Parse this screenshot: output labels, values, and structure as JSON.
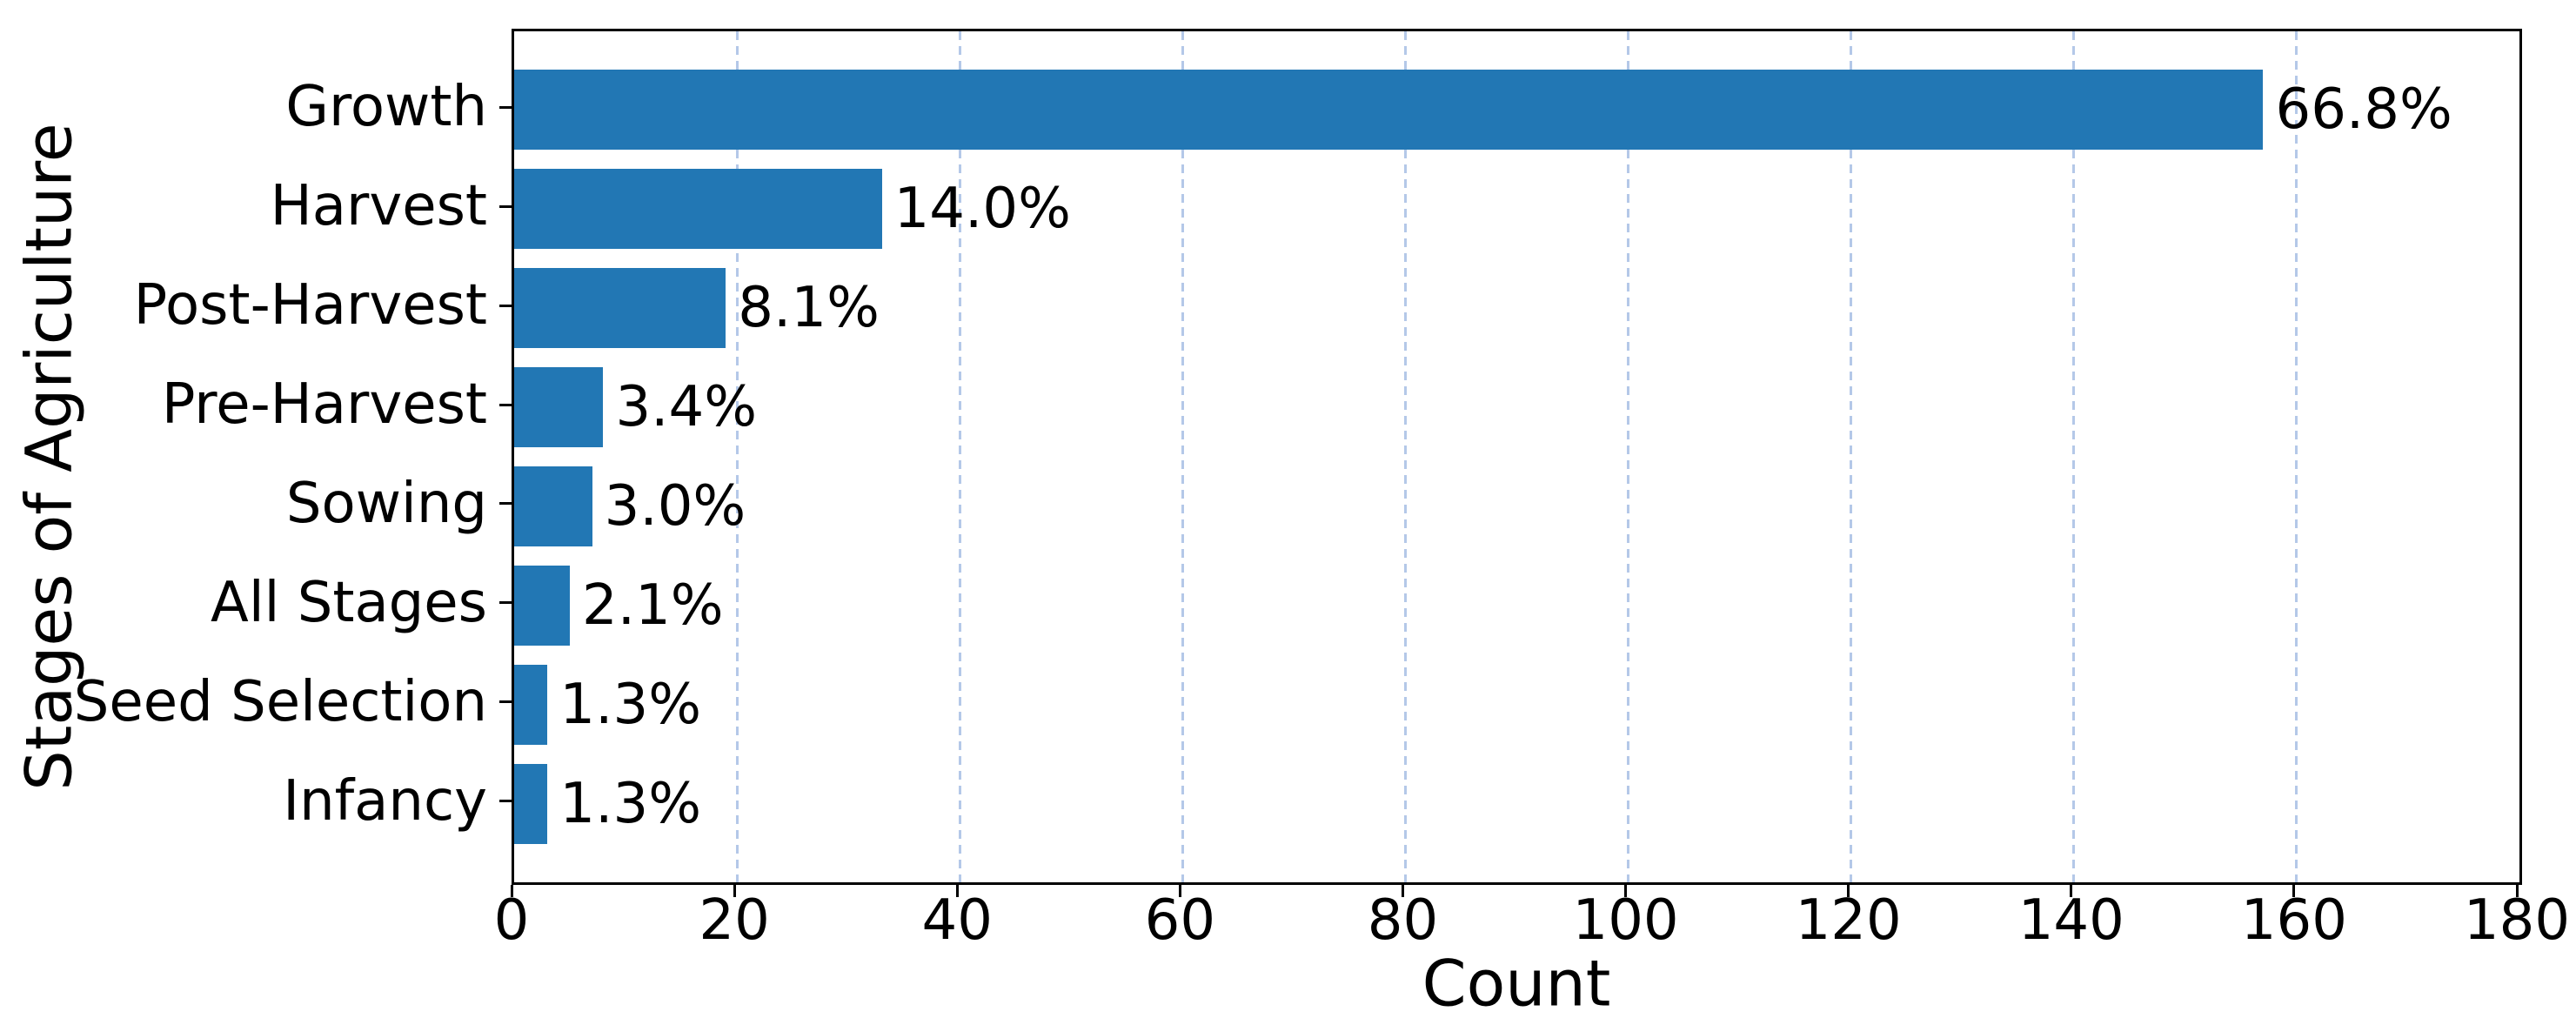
{
  "chart_data": {
    "type": "bar",
    "orientation": "horizontal",
    "title": "",
    "xlabel": "Count",
    "ylabel": "Stages of Agriculture",
    "categories": [
      "Growth",
      "Harvest",
      "Post-Harvest",
      "Pre-Harvest",
      "Sowing",
      "All Stages",
      "Seed Selection",
      "Infancy"
    ],
    "values": [
      157,
      33,
      19,
      8,
      7,
      5,
      3,
      3
    ],
    "bar_labels": [
      "66.8%",
      "14.0%",
      "8.1%",
      "3.4%",
      "3.0%",
      "2.1%",
      "1.3%",
      "1.3%"
    ],
    "xlim": [
      0,
      180
    ],
    "xticks": [
      0,
      20,
      40,
      60,
      80,
      100,
      120,
      140,
      160,
      180
    ],
    "grid": "vertical dashed gridlines at x ticks",
    "legend": "none",
    "colors": {
      "bar": "#2277b4",
      "grid": "#b4c8e8",
      "axis": "#000000",
      "text": "#000000",
      "background": "#ffffff"
    }
  }
}
